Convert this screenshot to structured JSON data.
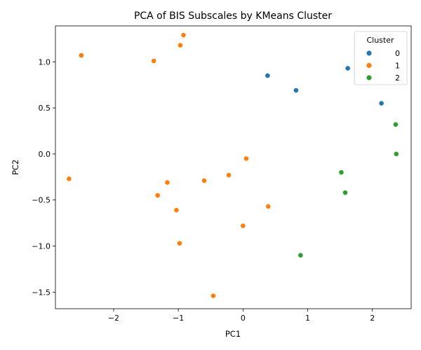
{
  "chart_data": {
    "type": "scatter",
    "title": "PCA of BIS Subscales by KMeans Cluster",
    "xlabel": "PC1",
    "ylabel": "PC2",
    "xlim": [
      -2.9,
      2.6
    ],
    "ylim": [
      -1.68,
      1.39
    ],
    "xticks": [
      -2,
      -1,
      0,
      1,
      2
    ],
    "yticks": [
      -1.5,
      -1.0,
      -0.5,
      0.0,
      0.5,
      1.0
    ],
    "grid": false,
    "legend": {
      "title": "Cluster",
      "placement": "top-right"
    },
    "series": [
      {
        "name": "0",
        "color": "#1f77b4",
        "points": [
          [
            0.38,
            0.85
          ],
          [
            0.82,
            0.69
          ],
          [
            1.62,
            0.93
          ],
          [
            2.14,
            0.55
          ]
        ]
      },
      {
        "name": "1",
        "color": "#ff7f0e",
        "points": [
          [
            -2.5,
            1.07
          ],
          [
            -1.38,
            1.01
          ],
          [
            -0.97,
            1.18
          ],
          [
            -0.92,
            1.29
          ],
          [
            -2.69,
            -0.27
          ],
          [
            -1.17,
            -0.31
          ],
          [
            -1.32,
            -0.45
          ],
          [
            -0.6,
            -0.29
          ],
          [
            -0.22,
            -0.23
          ],
          [
            0.05,
            -0.05
          ],
          [
            -1.03,
            -0.61
          ],
          [
            0.39,
            -0.57
          ],
          [
            0.0,
            -0.78
          ],
          [
            -0.98,
            -0.97
          ],
          [
            -0.46,
            -1.54
          ]
        ]
      },
      {
        "name": "2",
        "color": "#2ca02c",
        "points": [
          [
            2.36,
            0.32
          ],
          [
            2.37,
            0.0
          ],
          [
            1.52,
            -0.2
          ],
          [
            1.58,
            -0.42
          ],
          [
            0.89,
            -1.1
          ]
        ]
      }
    ]
  }
}
